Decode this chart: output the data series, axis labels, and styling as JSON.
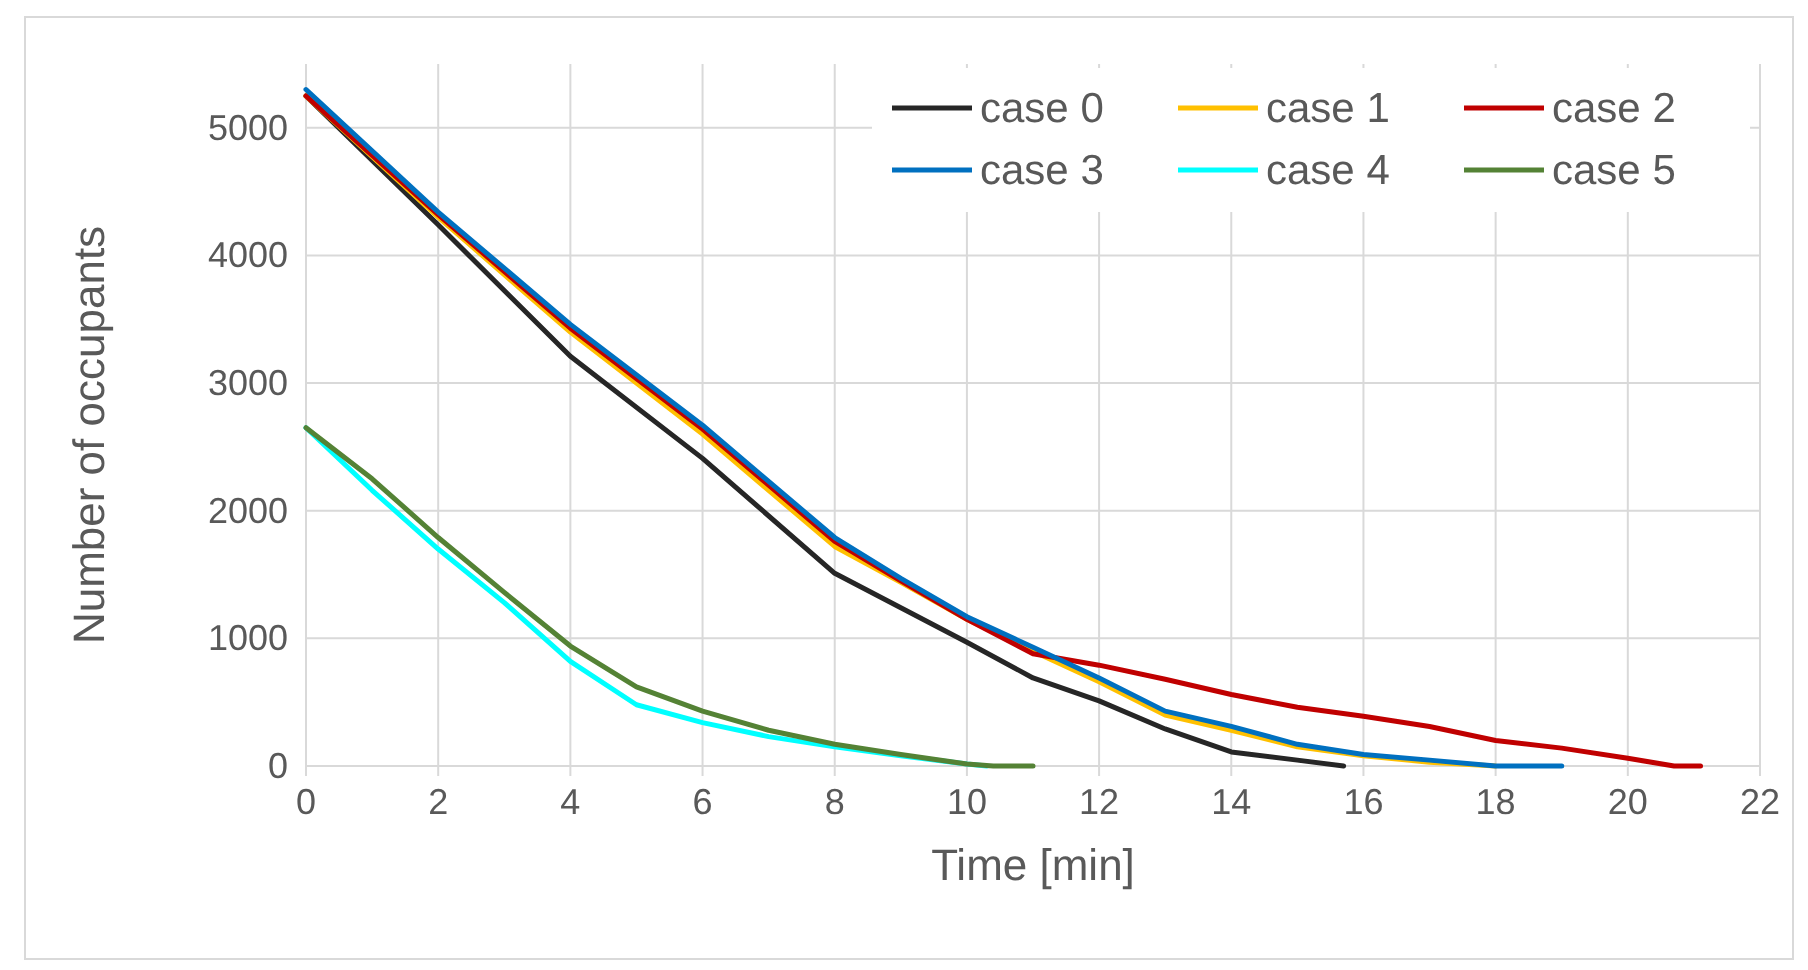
{
  "chart_data": {
    "type": "line",
    "xlabel": "Time [min]",
    "ylabel": "Number of occupants",
    "xlim": [
      0,
      22
    ],
    "xticks": [
      0,
      2,
      4,
      6,
      8,
      10,
      12,
      14,
      16,
      18,
      20,
      22
    ],
    "ylim": [
      0,
      5500
    ],
    "yticks": [
      0,
      1000,
      2000,
      3000,
      4000,
      5000
    ],
    "grid": true,
    "legend": "top right",
    "marker": "none",
    "line_style": "solid",
    "series": [
      {
        "name": "case 0",
        "color": "#262626",
        "x": [
          0,
          2,
          4,
          6,
          8,
          9,
          10,
          11,
          12,
          13,
          14,
          15,
          15.7
        ],
        "values": [
          5250,
          4240,
          3210,
          2410,
          1510,
          1240,
          970,
          690,
          510,
          290,
          110,
          46,
          0
        ]
      },
      {
        "name": "case 1",
        "color": "#ffc000",
        "x": [
          0,
          2,
          4,
          6,
          8,
          9,
          10,
          11,
          12,
          13,
          14,
          15,
          16,
          17,
          18
        ],
        "values": [
          5250,
          4300,
          3400,
          2600,
          1720,
          1440,
          1150,
          900,
          660,
          400,
          280,
          150,
          80,
          30,
          0
        ]
      },
      {
        "name": "case 2",
        "color": "#c00000",
        "x": [
          0,
          2,
          4,
          6,
          8,
          9,
          10,
          11,
          12,
          13,
          14,
          15,
          16,
          17,
          18,
          19,
          20,
          20.7,
          21.1
        ],
        "values": [
          5250,
          4320,
          3430,
          2640,
          1760,
          1450,
          1150,
          880,
          790,
          680,
          560,
          460,
          390,
          310,
          200,
          140,
          60,
          0,
          0
        ]
      },
      {
        "name": "case 3",
        "color": "#0070c0",
        "x": [
          0,
          2,
          4,
          6,
          8,
          9,
          10,
          11,
          12,
          13,
          14,
          15,
          16,
          17,
          18,
          19
        ],
        "values": [
          5300,
          4340,
          3460,
          2670,
          1790,
          1470,
          1170,
          930,
          690,
          430,
          310,
          170,
          90,
          46,
          0,
          0
        ]
      },
      {
        "name": "case 4",
        "color": "#00ffff",
        "x": [
          0,
          1,
          2,
          3,
          4,
          5,
          6,
          7,
          8,
          9,
          10,
          10.3
        ],
        "values": [
          2650,
          2160,
          1700,
          1280,
          820,
          480,
          340,
          230,
          150,
          80,
          15,
          0
        ]
      },
      {
        "name": "case 5",
        "color": "#548235",
        "x": [
          0,
          1,
          2,
          3,
          4,
          5,
          6,
          7,
          8,
          9,
          10,
          10.4,
          11
        ],
        "values": [
          2650,
          2250,
          1790,
          1360,
          940,
          620,
          430,
          280,
          170,
          90,
          15,
          0,
          0
        ]
      }
    ]
  }
}
